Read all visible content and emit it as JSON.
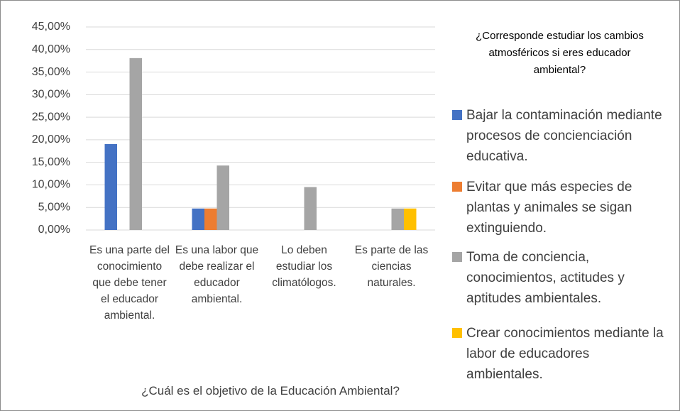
{
  "chart_data": {
    "type": "bar",
    "x_label": "¿Cuál es el objetivo de la Educación Ambiental?",
    "legend_title": "¿Corresponde estudiar los cambios atmosféricos si eres educador ambiental?",
    "legend_position": "right",
    "grid": true,
    "categories": [
      "Es una parte del conocimiento que debe tener el educador ambiental.",
      "Es una labor que debe realizar el educador ambiental.",
      "Lo deben estudiar los climatólogos.",
      "Es parte de las ciencias naturales."
    ],
    "series": [
      {
        "name": "Bajar la contaminación mediante procesos de concienciación educativa.",
        "color": "#4472c4",
        "values": [
          19.05,
          4.76,
          0,
          0
        ]
      },
      {
        "name": "Evitar que más especies de plantas y animales se sigan extinguiendo.",
        "color": "#ed7d31",
        "values": [
          0,
          4.76,
          0,
          0
        ]
      },
      {
        "name": "Toma de conciencia, conocimientos, actitudes y aptitudes ambientales.",
        "color": "#a5a5a5",
        "values": [
          38.1,
          14.29,
          9.52,
          4.76
        ]
      },
      {
        "name": "Crear conocimientos mediante la labor de educadores ambientales.",
        "color": "#ffc000",
        "values": [
          0,
          0,
          0,
          4.76
        ]
      }
    ],
    "ylim": [
      0,
      45
    ],
    "yticks": [
      {
        "value": 0,
        "label": "0,00%"
      },
      {
        "value": 5,
        "label": "5,00%"
      },
      {
        "value": 10,
        "label": "10,00%"
      },
      {
        "value": 15,
        "label": "15,00%"
      },
      {
        "value": 20,
        "label": "20,00%"
      },
      {
        "value": 25,
        "label": "25,00%"
      },
      {
        "value": 30,
        "label": "30,00%"
      },
      {
        "value": 35,
        "label": "35,00%"
      },
      {
        "value": 40,
        "label": "40,00%"
      },
      {
        "value": 45,
        "label": "45,00%"
      }
    ]
  }
}
